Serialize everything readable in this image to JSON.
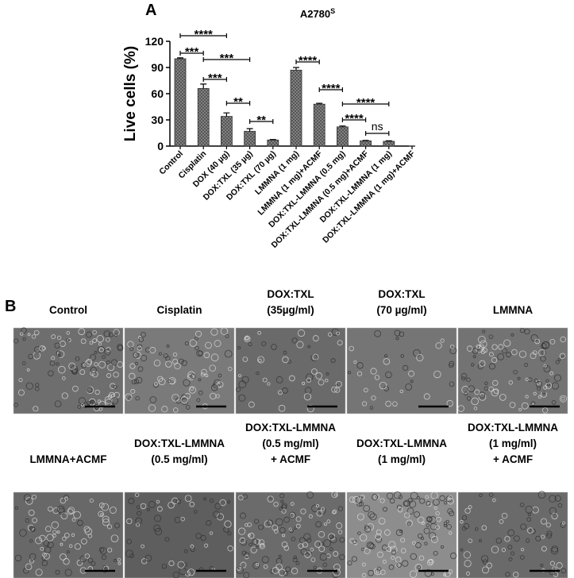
{
  "panel_labels": [
    "A",
    "B"
  ],
  "chart_data": {
    "type": "bar",
    "title": "A2780",
    "title_superscript": "S",
    "y_label": "Live cells (%)",
    "categories": [
      "Control",
      "Cisplatin",
      "DOX (40 µg)",
      "DOX:TXL (35 µg)",
      "DOX:TXL (70 µg)",
      "LMMNA (1 mg)",
      "LMMNA (1 mg)+ACMF",
      "DOX:TXL-LMMNA (0.5 mg)",
      "DOX:TXL-LMMNA (0.5 mg)+ACMF",
      "DOX:TXL-LMMNA (1 mg)",
      "DOX:TXL-LMMNA (1 mg)+ACMF"
    ],
    "values": [
      100,
      66,
      34,
      17,
      7,
      87,
      48,
      22,
      6,
      5.5,
      0
    ],
    "errors": [
      1,
      5,
      4,
      3,
      0.5,
      3,
      1,
      1,
      0.5,
      0.5,
      0
    ],
    "color": "#8a8a8a",
    "ylim": [
      0,
      120
    ],
    "yticks": [
      0,
      30,
      60,
      90,
      120
    ],
    "significance": [
      {
        "from": 0,
        "to": 2,
        "label": "****"
      },
      {
        "from": 0,
        "to": 1,
        "label": "***"
      },
      {
        "from": 1,
        "to": 3,
        "label": "***"
      },
      {
        "from": 1,
        "to": 2,
        "label": "***"
      },
      {
        "from": 2,
        "to": 3,
        "label": "**"
      },
      {
        "from": 3,
        "to": 4,
        "label": "**"
      },
      {
        "from": 5,
        "to": 6,
        "label": "****"
      },
      {
        "from": 6,
        "to": 7,
        "label": "****"
      },
      {
        "from": 7,
        "to": 9,
        "label": "****"
      },
      {
        "from": 7,
        "to": 8,
        "label": "****"
      },
      {
        "from": 8,
        "to": 9,
        "label": "ns"
      }
    ]
  },
  "micrographs": [
    {
      "label": [
        "Control"
      ]
    },
    {
      "label": [
        "Cisplatin"
      ]
    },
    {
      "label": [
        "DOX:TXL",
        "(35µg/ml)"
      ]
    },
    {
      "label": [
        "DOX:TXL",
        "(70 µg/ml)"
      ]
    },
    {
      "label": [
        "LMMNA"
      ]
    },
    {
      "label": [
        "LMMNA+ACMF"
      ]
    },
    {
      "label": [
        "DOX:TXL-LMMNA",
        "(0.5 mg/ml)"
      ]
    },
    {
      "label": [
        "DOX:TXL-LMMNA",
        "(0.5 mg/ml)",
        "+ ACMF"
      ]
    },
    {
      "label": [
        "DOX:TXL-LMMNA",
        "(1 mg/ml)"
      ]
    },
    {
      "label": [
        "DOX:TXL-LMMNA",
        "(1 mg/ml)",
        "+ ACMF"
      ]
    }
  ]
}
